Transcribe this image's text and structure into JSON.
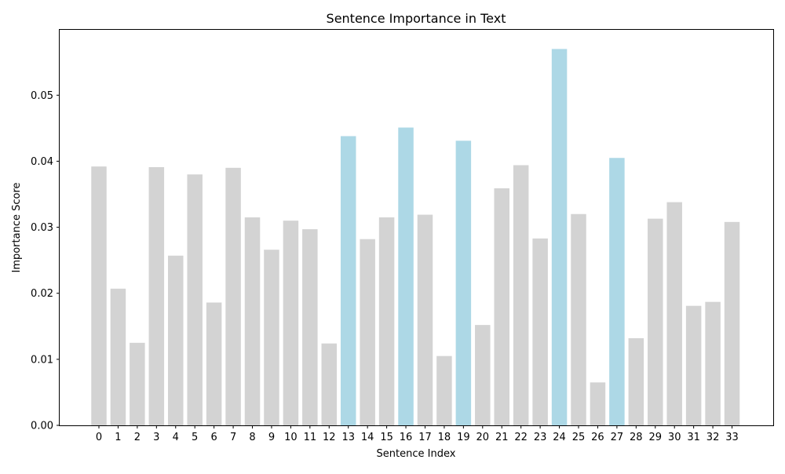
{
  "chart_data": {
    "type": "bar",
    "title": "Sentence Importance in Text",
    "xlabel": "Sentence Index",
    "ylabel": "Importance Score",
    "categories": [
      "0",
      "1",
      "2",
      "3",
      "4",
      "5",
      "6",
      "7",
      "8",
      "9",
      "10",
      "11",
      "12",
      "13",
      "14",
      "15",
      "16",
      "17",
      "18",
      "19",
      "20",
      "21",
      "22",
      "23",
      "24",
      "25",
      "26",
      "27",
      "28",
      "29",
      "30",
      "31",
      "32",
      "33"
    ],
    "values": [
      0.0392,
      0.0207,
      0.0125,
      0.0391,
      0.0257,
      0.038,
      0.0186,
      0.039,
      0.0315,
      0.0266,
      0.031,
      0.0297,
      0.0124,
      0.0438,
      0.0282,
      0.0315,
      0.0451,
      0.0319,
      0.0105,
      0.0431,
      0.0152,
      0.0359,
      0.0394,
      0.0283,
      0.057,
      0.032,
      0.0065,
      0.0405,
      0.0132,
      0.0313,
      0.0338,
      0.0181,
      0.0187,
      0.0308
    ],
    "highlighted": [
      13,
      16,
      19,
      24,
      27
    ],
    "colors": {
      "default": "#d3d3d3",
      "highlight": "#add8e6"
    },
    "y_ticks": [
      "0.00",
      "0.01",
      "0.02",
      "0.03",
      "0.04",
      "0.05"
    ],
    "ylim": [
      0,
      0.0599
    ],
    "grid": false,
    "legend": "none"
  }
}
